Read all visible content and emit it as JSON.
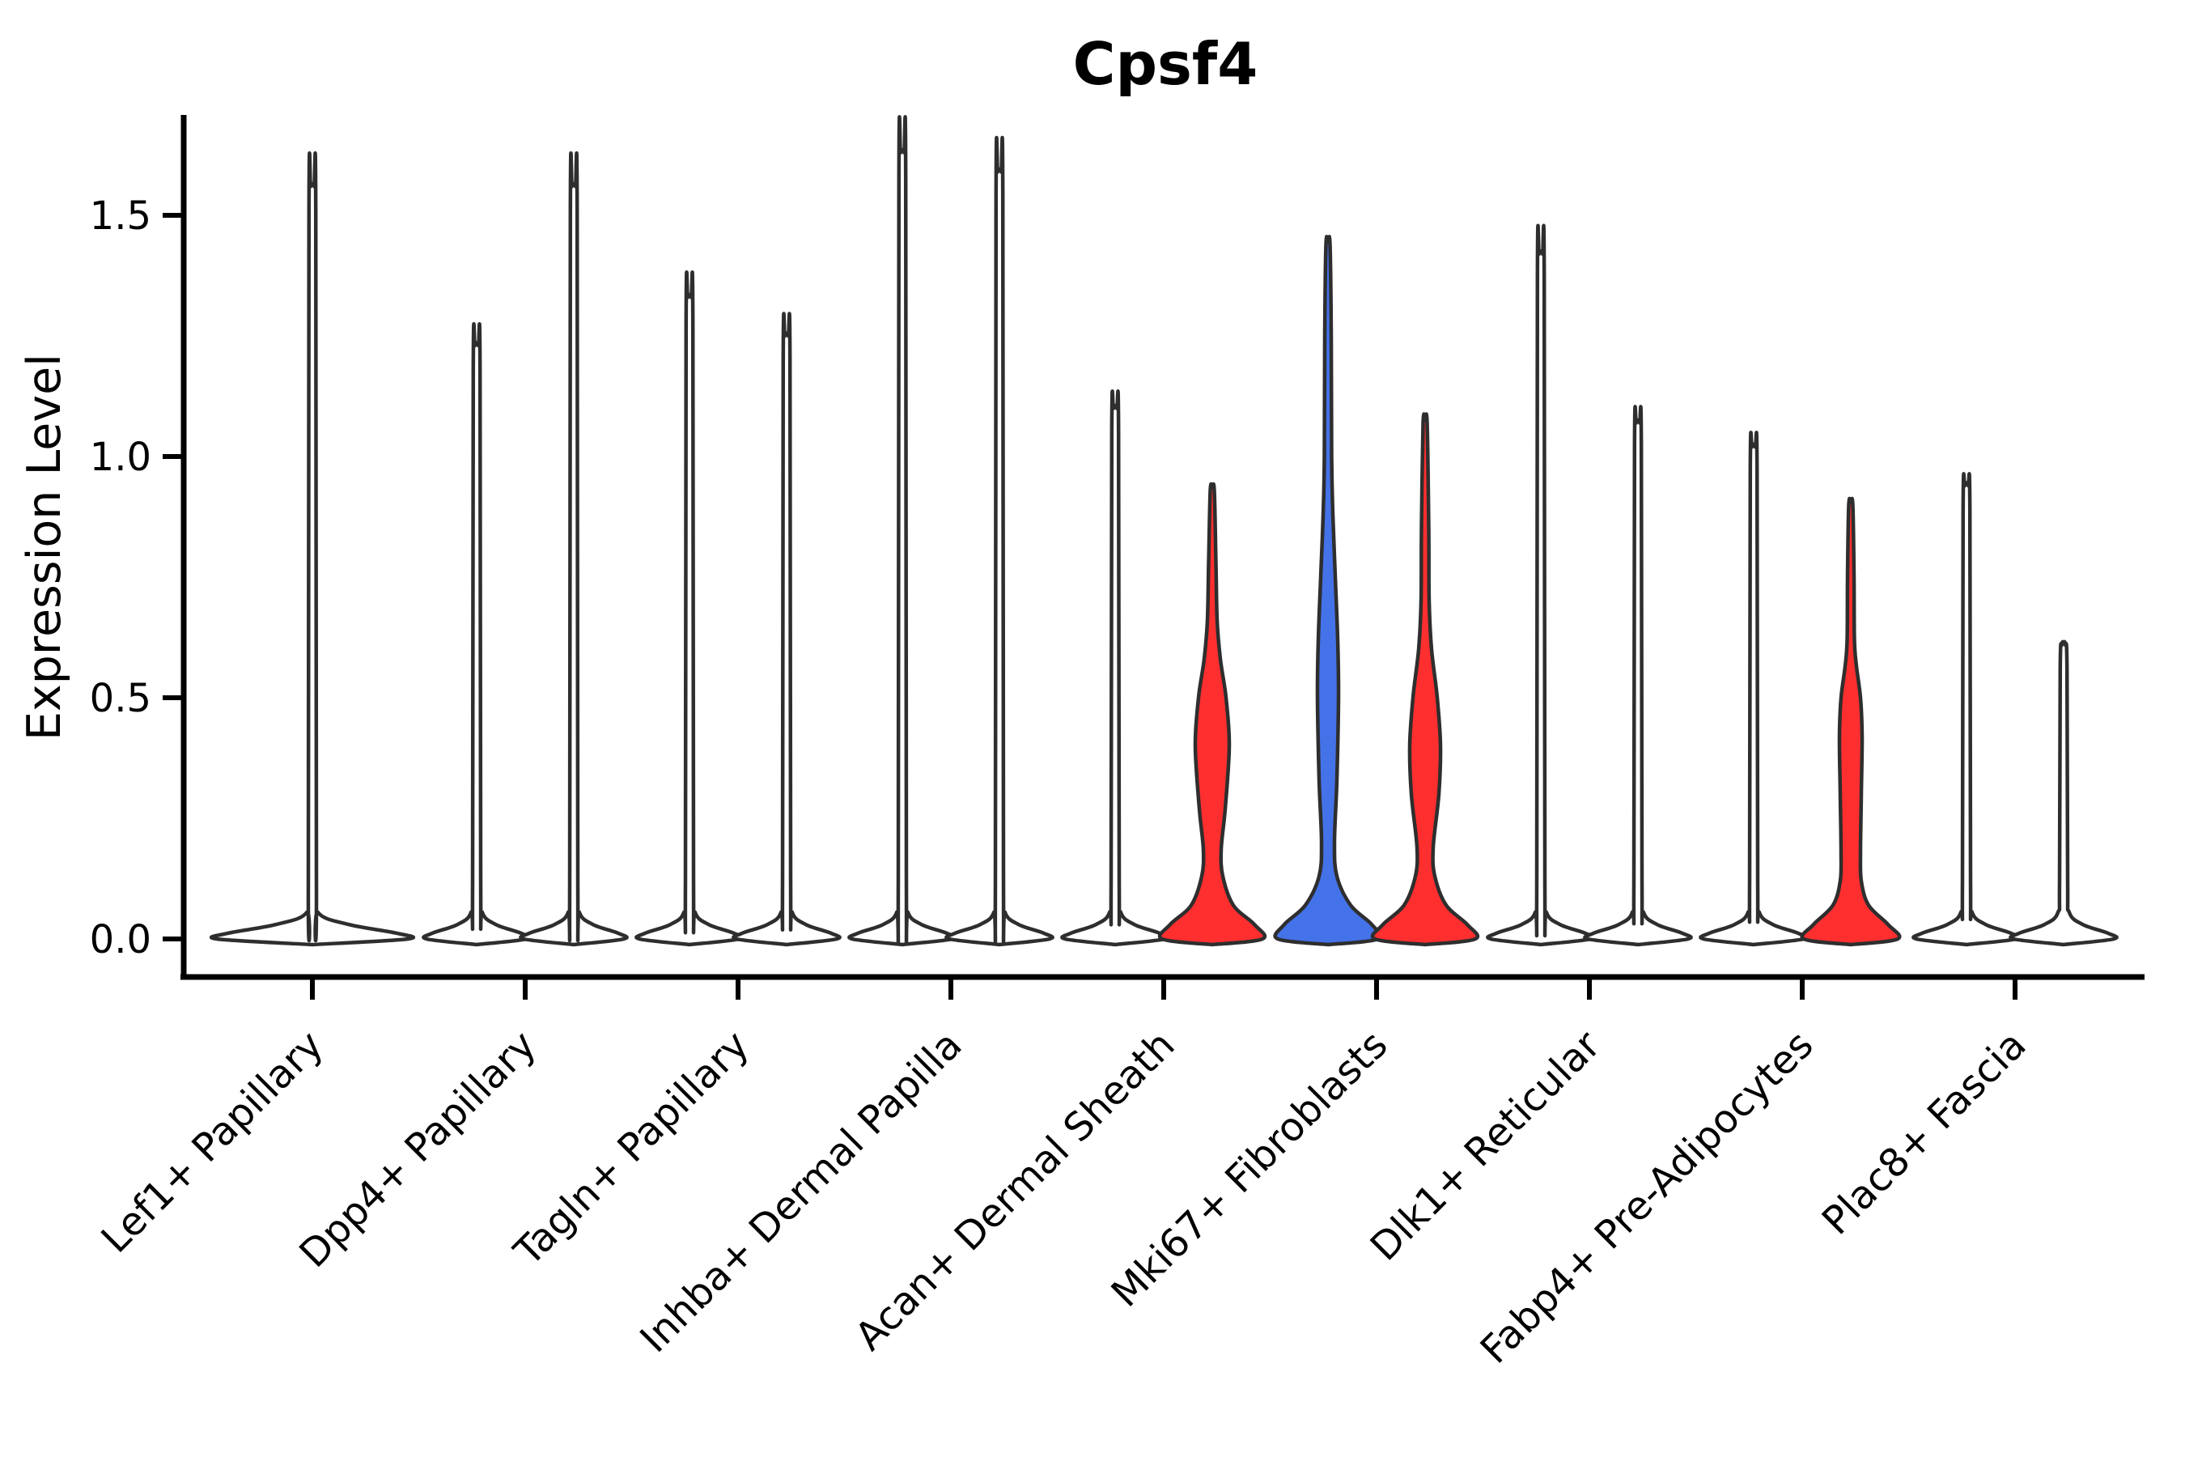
{
  "chart_data": {
    "type": "violin",
    "title": "Cpsf4",
    "xlabel": "",
    "ylabel": "Expression Level",
    "ylim": [
      -0.09,
      1.71
    ],
    "yticks": [
      0.0,
      0.5,
      1.0,
      1.5
    ],
    "grid": false,
    "legend": "none",
    "categories": [
      "Lef1+ Papillary",
      "Dpp4+ Papillary",
      "Tagln+ Papillary",
      "Inhba+ Dermal Papilla",
      "Acan+ Dermal Sheath",
      "Mki67+ Fibroblasts",
      "Dlk1+ Reticular",
      "Fabp4+ Pre-Adipocytes",
      "Plac8+ Fascia"
    ],
    "colors": {
      "red": "#ff2f2f",
      "blue": "#4472e8",
      "plain_fill": "#ffffff",
      "outline": "#2e2e2e",
      "axis": "#000000",
      "background": "#ffffff"
    },
    "violins": [
      {
        "category": "Lef1+ Papillary",
        "position": "center",
        "peak": 1.56,
        "fill": "plain_fill",
        "base_halfwidth": 118,
        "shape": "spike"
      },
      {
        "category": "Dpp4+ Papillary",
        "position": "left",
        "peak": 1.23,
        "fill": "plain_fill",
        "base_halfwidth": 62,
        "shape": "spike"
      },
      {
        "category": "Dpp4+ Papillary",
        "position": "right",
        "peak": 1.56,
        "fill": "plain_fill",
        "base_halfwidth": 62,
        "shape": "spike"
      },
      {
        "category": "Tagln+ Papillary",
        "position": "left",
        "peak": 1.33,
        "fill": "plain_fill",
        "base_halfwidth": 62,
        "shape": "spike"
      },
      {
        "category": "Tagln+ Papillary",
        "position": "right",
        "peak": 1.25,
        "fill": "plain_fill",
        "base_halfwidth": 62,
        "shape": "spike"
      },
      {
        "category": "Inhba+ Dermal Papilla",
        "position": "left",
        "peak": 1.63,
        "fill": "plain_fill",
        "base_halfwidth": 62,
        "shape": "spike"
      },
      {
        "category": "Inhba+ Dermal Papilla",
        "position": "right",
        "peak": 1.59,
        "fill": "plain_fill",
        "base_halfwidth": 62,
        "shape": "spike"
      },
      {
        "category": "Acan+ Dermal Sheath",
        "position": "left",
        "peak": 1.1,
        "fill": "plain_fill",
        "base_halfwidth": 62,
        "shape": "spike"
      },
      {
        "category": "Acan+ Dermal Sheath",
        "position": "right",
        "peak": 0.93,
        "fill": "red",
        "base_halfwidth": 62,
        "shape": "bulge",
        "profile": [
          [
            0,
            62
          ],
          [
            0.03,
            52
          ],
          [
            0.07,
            26
          ],
          [
            0.13,
            13
          ],
          [
            0.185,
            11
          ],
          [
            0.27,
            16
          ],
          [
            0.4,
            21
          ],
          [
            0.5,
            17
          ],
          [
            0.58,
            10
          ],
          [
            0.66,
            6
          ],
          [
            0.78,
            4.5
          ],
          [
            0.93,
            2.5
          ]
        ]
      },
      {
        "category": "Mki67+ Fibroblasts",
        "position": "left",
        "peak": 1.44,
        "fill": "blue",
        "base_halfwidth": 62,
        "shape": "bulge",
        "profile": [
          [
            0,
            62
          ],
          [
            0.03,
            54
          ],
          [
            0.07,
            28
          ],
          [
            0.13,
            11
          ],
          [
            0.2,
            8
          ],
          [
            0.33,
            11
          ],
          [
            0.5,
            13
          ],
          [
            0.62,
            12
          ],
          [
            0.75,
            9
          ],
          [
            0.88,
            6
          ],
          [
            1.0,
            4.5
          ],
          [
            1.25,
            4
          ],
          [
            1.44,
            2.5
          ]
        ]
      },
      {
        "category": "Mki67+ Fibroblasts",
        "position": "right",
        "peak": 1.07,
        "fill": "red",
        "base_halfwidth": 62,
        "shape": "bulge",
        "profile": [
          [
            0,
            62
          ],
          [
            0.03,
            52
          ],
          [
            0.07,
            26
          ],
          [
            0.13,
            12
          ],
          [
            0.19,
            10
          ],
          [
            0.3,
            17
          ],
          [
            0.4,
            19
          ],
          [
            0.5,
            15
          ],
          [
            0.6,
            8
          ],
          [
            0.7,
            5
          ],
          [
            0.85,
            4.5
          ],
          [
            1.07,
            2.5
          ]
        ]
      },
      {
        "category": "Dlk1+ Reticular",
        "position": "left",
        "peak": 1.42,
        "fill": "plain_fill",
        "base_halfwidth": 62,
        "shape": "spike"
      },
      {
        "category": "Dlk1+ Reticular",
        "position": "right",
        "peak": 1.07,
        "fill": "plain_fill",
        "base_halfwidth": 62,
        "shape": "spike"
      },
      {
        "category": "Fabp4+ Pre-Adipocytes",
        "position": "left",
        "peak": 1.02,
        "fill": "plain_fill",
        "base_halfwidth": 62,
        "shape": "spike"
      },
      {
        "category": "Fabp4+ Pre-Adipocytes",
        "position": "right",
        "peak": 0.9,
        "fill": "red",
        "base_halfwidth": 58,
        "shape": "bulge",
        "profile": [
          [
            0,
            58
          ],
          [
            0.03,
            46
          ],
          [
            0.07,
            22
          ],
          [
            0.12,
            13
          ],
          [
            0.18,
            12
          ],
          [
            0.3,
            13
          ],
          [
            0.42,
            14
          ],
          [
            0.5,
            12
          ],
          [
            0.565,
            7
          ],
          [
            0.62,
            4.5
          ],
          [
            0.75,
            4
          ],
          [
            0.9,
            2.5
          ]
        ]
      },
      {
        "category": "Plac8+ Fascia",
        "position": "left",
        "peak": 0.94,
        "fill": "plain_fill",
        "base_halfwidth": 62,
        "shape": "spike"
      },
      {
        "category": "Plac8+ Fascia",
        "position": "right",
        "peak": 0.61,
        "fill": "plain_fill",
        "base_halfwidth": 62,
        "shape": "spike"
      }
    ]
  }
}
